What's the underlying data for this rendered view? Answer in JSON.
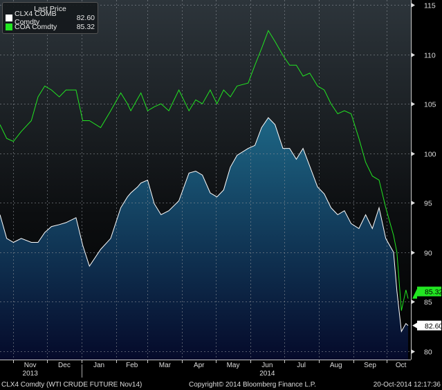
{
  "legend": {
    "title": "Last Price"
  },
  "footer": {
    "left": "CLX4 Comdty (WTI CRUDE FUTURE  Nov14)",
    "center": "Copyright© 2014 Bloomberg Finance L.P.",
    "right": "20-Oct-2014 12:17:36"
  },
  "colors": {
    "clx4": "#ffffff",
    "coa": "#22e622",
    "area_top": "#1d6685",
    "area_bottom": "#050a2a"
  },
  "chart_data": {
    "type": "area",
    "ylim": [
      80,
      115
    ],
    "yticks": [
      80,
      85,
      90,
      95,
      100,
      105,
      110,
      115
    ],
    "xlim": [
      "2013-10-20",
      "2014-10-20"
    ],
    "months": [
      "Nov",
      "Dec",
      "Jan",
      "Feb",
      "Mar",
      "Apr",
      "May",
      "Jun",
      "Jul",
      "Aug",
      "Sep",
      "Oct"
    ],
    "years": [
      "2013",
      "2014"
    ],
    "grid": true,
    "legend_placement": "top-left",
    "x": [
      "2013-10-20",
      "2013-10-26",
      "2013-11-01",
      "2013-11-08",
      "2013-11-17",
      "2013-11-23",
      "2013-11-29",
      "2013-12-05",
      "2013-12-12",
      "2013-12-18",
      "2013-12-27",
      "2014-01-02",
      "2014-01-08",
      "2014-01-18",
      "2014-01-27",
      "2014-02-05",
      "2014-02-11",
      "2014-02-14",
      "2014-02-20",
      "2014-02-23",
      "2014-03-01",
      "2014-03-07",
      "2014-03-13",
      "2014-03-20",
      "2014-03-29",
      "2014-04-07",
      "2014-04-13",
      "2014-04-19",
      "2014-04-26",
      "2014-05-02",
      "2014-05-08",
      "2014-05-14",
      "2014-05-20",
      "2014-05-30",
      "2014-06-05",
      "2014-06-11",
      "2014-06-17",
      "2014-06-23",
      "2014-06-30",
      "2014-07-06",
      "2014-07-12",
      "2014-07-18",
      "2014-07-24",
      "2014-07-31",
      "2014-08-06",
      "2014-08-12",
      "2014-08-18",
      "2014-08-24",
      "2014-08-30",
      "2014-09-06",
      "2014-09-12",
      "2014-09-18",
      "2014-09-24",
      "2014-09-30",
      "2014-10-07",
      "2014-10-10",
      "2014-10-14",
      "2014-10-18",
      "2014-10-20"
    ],
    "series": [
      {
        "name": "CLX4 COMB Comdty",
        "last": "82.60",
        "values": [
          93.8,
          91.4,
          91.0,
          91.4,
          91.0,
          91.0,
          92.0,
          92.6,
          92.8,
          93.0,
          93.5,
          90.7,
          88.6,
          90.3,
          91.4,
          94.5,
          95.6,
          96.0,
          96.6,
          97.0,
          97.3,
          94.9,
          93.8,
          94.2,
          95.2,
          98.0,
          98.2,
          97.8,
          96.0,
          95.6,
          96.3,
          98.6,
          99.8,
          100.5,
          100.8,
          102.6,
          103.6,
          102.9,
          100.5,
          100.5,
          99.4,
          100.5,
          98.7,
          96.6,
          95.9,
          94.5,
          93.8,
          94.2,
          92.9,
          92.4,
          93.8,
          92.4,
          94.5,
          91.4,
          90.0,
          86.1,
          82.0,
          82.8,
          82.6
        ]
      },
      {
        "name": "COA Comdty",
        "last": "85.32",
        "values": [
          102.9,
          101.5,
          101.2,
          102.2,
          103.3,
          105.7,
          106.8,
          106.4,
          105.7,
          106.4,
          106.4,
          103.3,
          103.3,
          102.6,
          104.3,
          106.1,
          105.0,
          104.3,
          105.5,
          106.1,
          104.3,
          104.7,
          105.0,
          104.3,
          106.4,
          104.3,
          105.4,
          105.0,
          106.4,
          105.0,
          106.4,
          105.7,
          106.8,
          107.1,
          108.9,
          110.6,
          112.4,
          111.3,
          109.9,
          108.9,
          108.9,
          107.8,
          108.1,
          106.8,
          106.4,
          105.0,
          104.0,
          104.3,
          104.0,
          101.5,
          99.1,
          97.7,
          97.3,
          94.5,
          91.7,
          90.0,
          84.1,
          86.2,
          85.32
        ]
      }
    ]
  }
}
